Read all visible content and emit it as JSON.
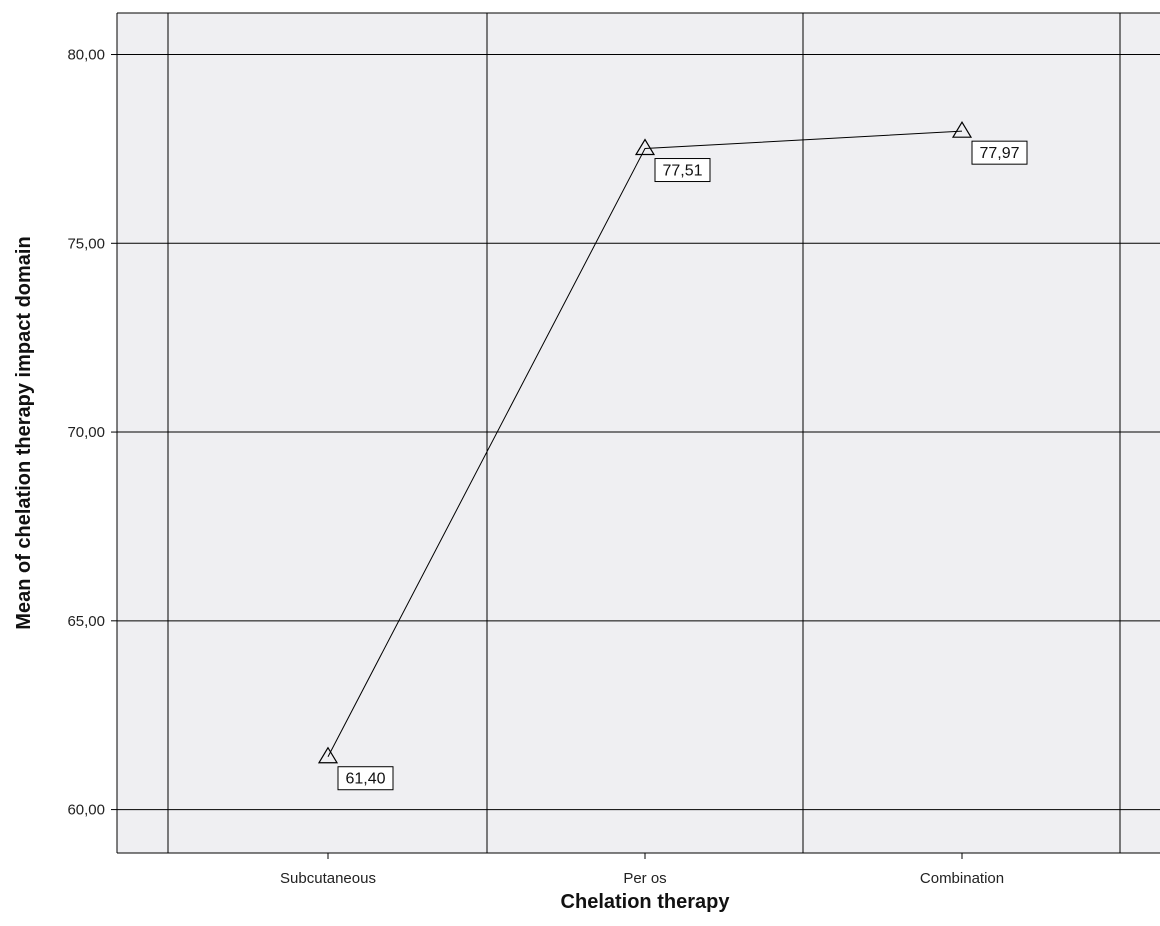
{
  "chart_data": {
    "type": "line",
    "categories": [
      "Subcutaneous",
      "Per os",
      "Combination"
    ],
    "series": [
      {
        "values": [
          61.4,
          77.51,
          77.97
        ]
      }
    ],
    "data_labels": [
      "61,40",
      "77,51",
      "77,97"
    ],
    "xlabel": "Chelation therapy",
    "ylabel": "Mean of chelation therapy impact domain",
    "yticks": [
      60,
      65,
      70,
      75,
      80
    ],
    "ytick_labels": [
      "60,00",
      "65,00",
      "70,00",
      "75,00",
      "80,00"
    ],
    "ylim": [
      58.85,
      81.1
    ],
    "grid": true,
    "marker": "triangle-open",
    "plot_background": "#efeff2",
    "line_color": "#000000"
  }
}
